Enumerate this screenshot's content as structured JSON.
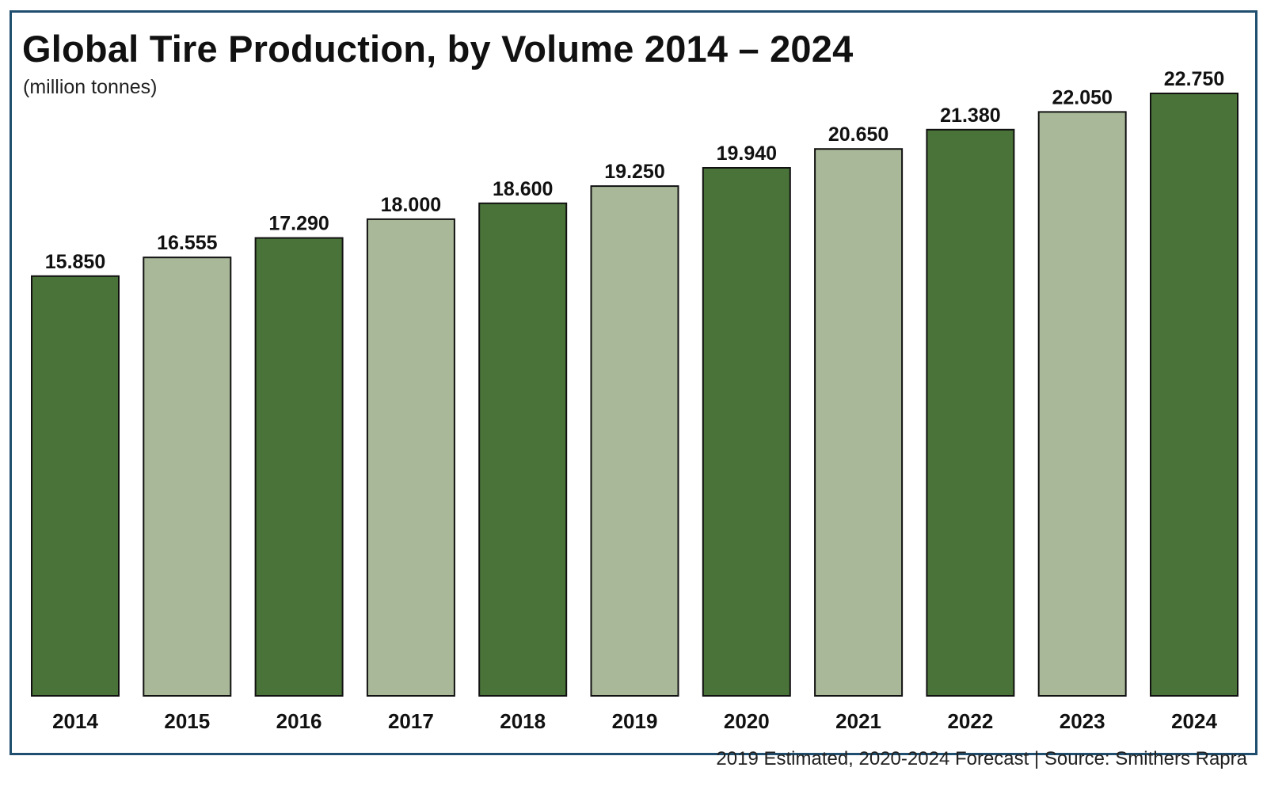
{
  "chart_data": {
    "type": "bar",
    "title": "Global Tire Production, by Volume 2014 – 2024",
    "subtitle": "(million tonnes)",
    "categories": [
      "2014",
      "2015",
      "2016",
      "2017",
      "2018",
      "2019",
      "2020",
      "2021",
      "2022",
      "2023",
      "2024"
    ],
    "values": [
      15.85,
      16.555,
      17.29,
      18.0,
      18.6,
      19.25,
      19.94,
      20.65,
      21.38,
      22.05,
      22.75
    ],
    "value_labels": [
      "15.850",
      "16.555",
      "17.290",
      "18.000",
      "18.600",
      "19.250",
      "19.940",
      "20.650",
      "21.380",
      "22.050",
      "22.750"
    ],
    "bar_colors": [
      "#4a7339",
      "#a9b899",
      "#4a7339",
      "#a9b899",
      "#4a7339",
      "#a9b899",
      "#4a7339",
      "#a9b899",
      "#4a7339",
      "#a9b899",
      "#4a7339"
    ],
    "ylim": [
      0,
      22.75
    ],
    "grid": false,
    "legend": "none",
    "xlabel": "",
    "ylabel": ""
  },
  "colors": {
    "frame_border": "#1f4e6e",
    "dark_bar": "#4a7339",
    "light_bar": "#a9b899",
    "bar_outline": "#111111"
  },
  "footer": {
    "source_note": "2019 Estimated, 2020-2024 Forecast | Source: Smithers Rapra"
  }
}
